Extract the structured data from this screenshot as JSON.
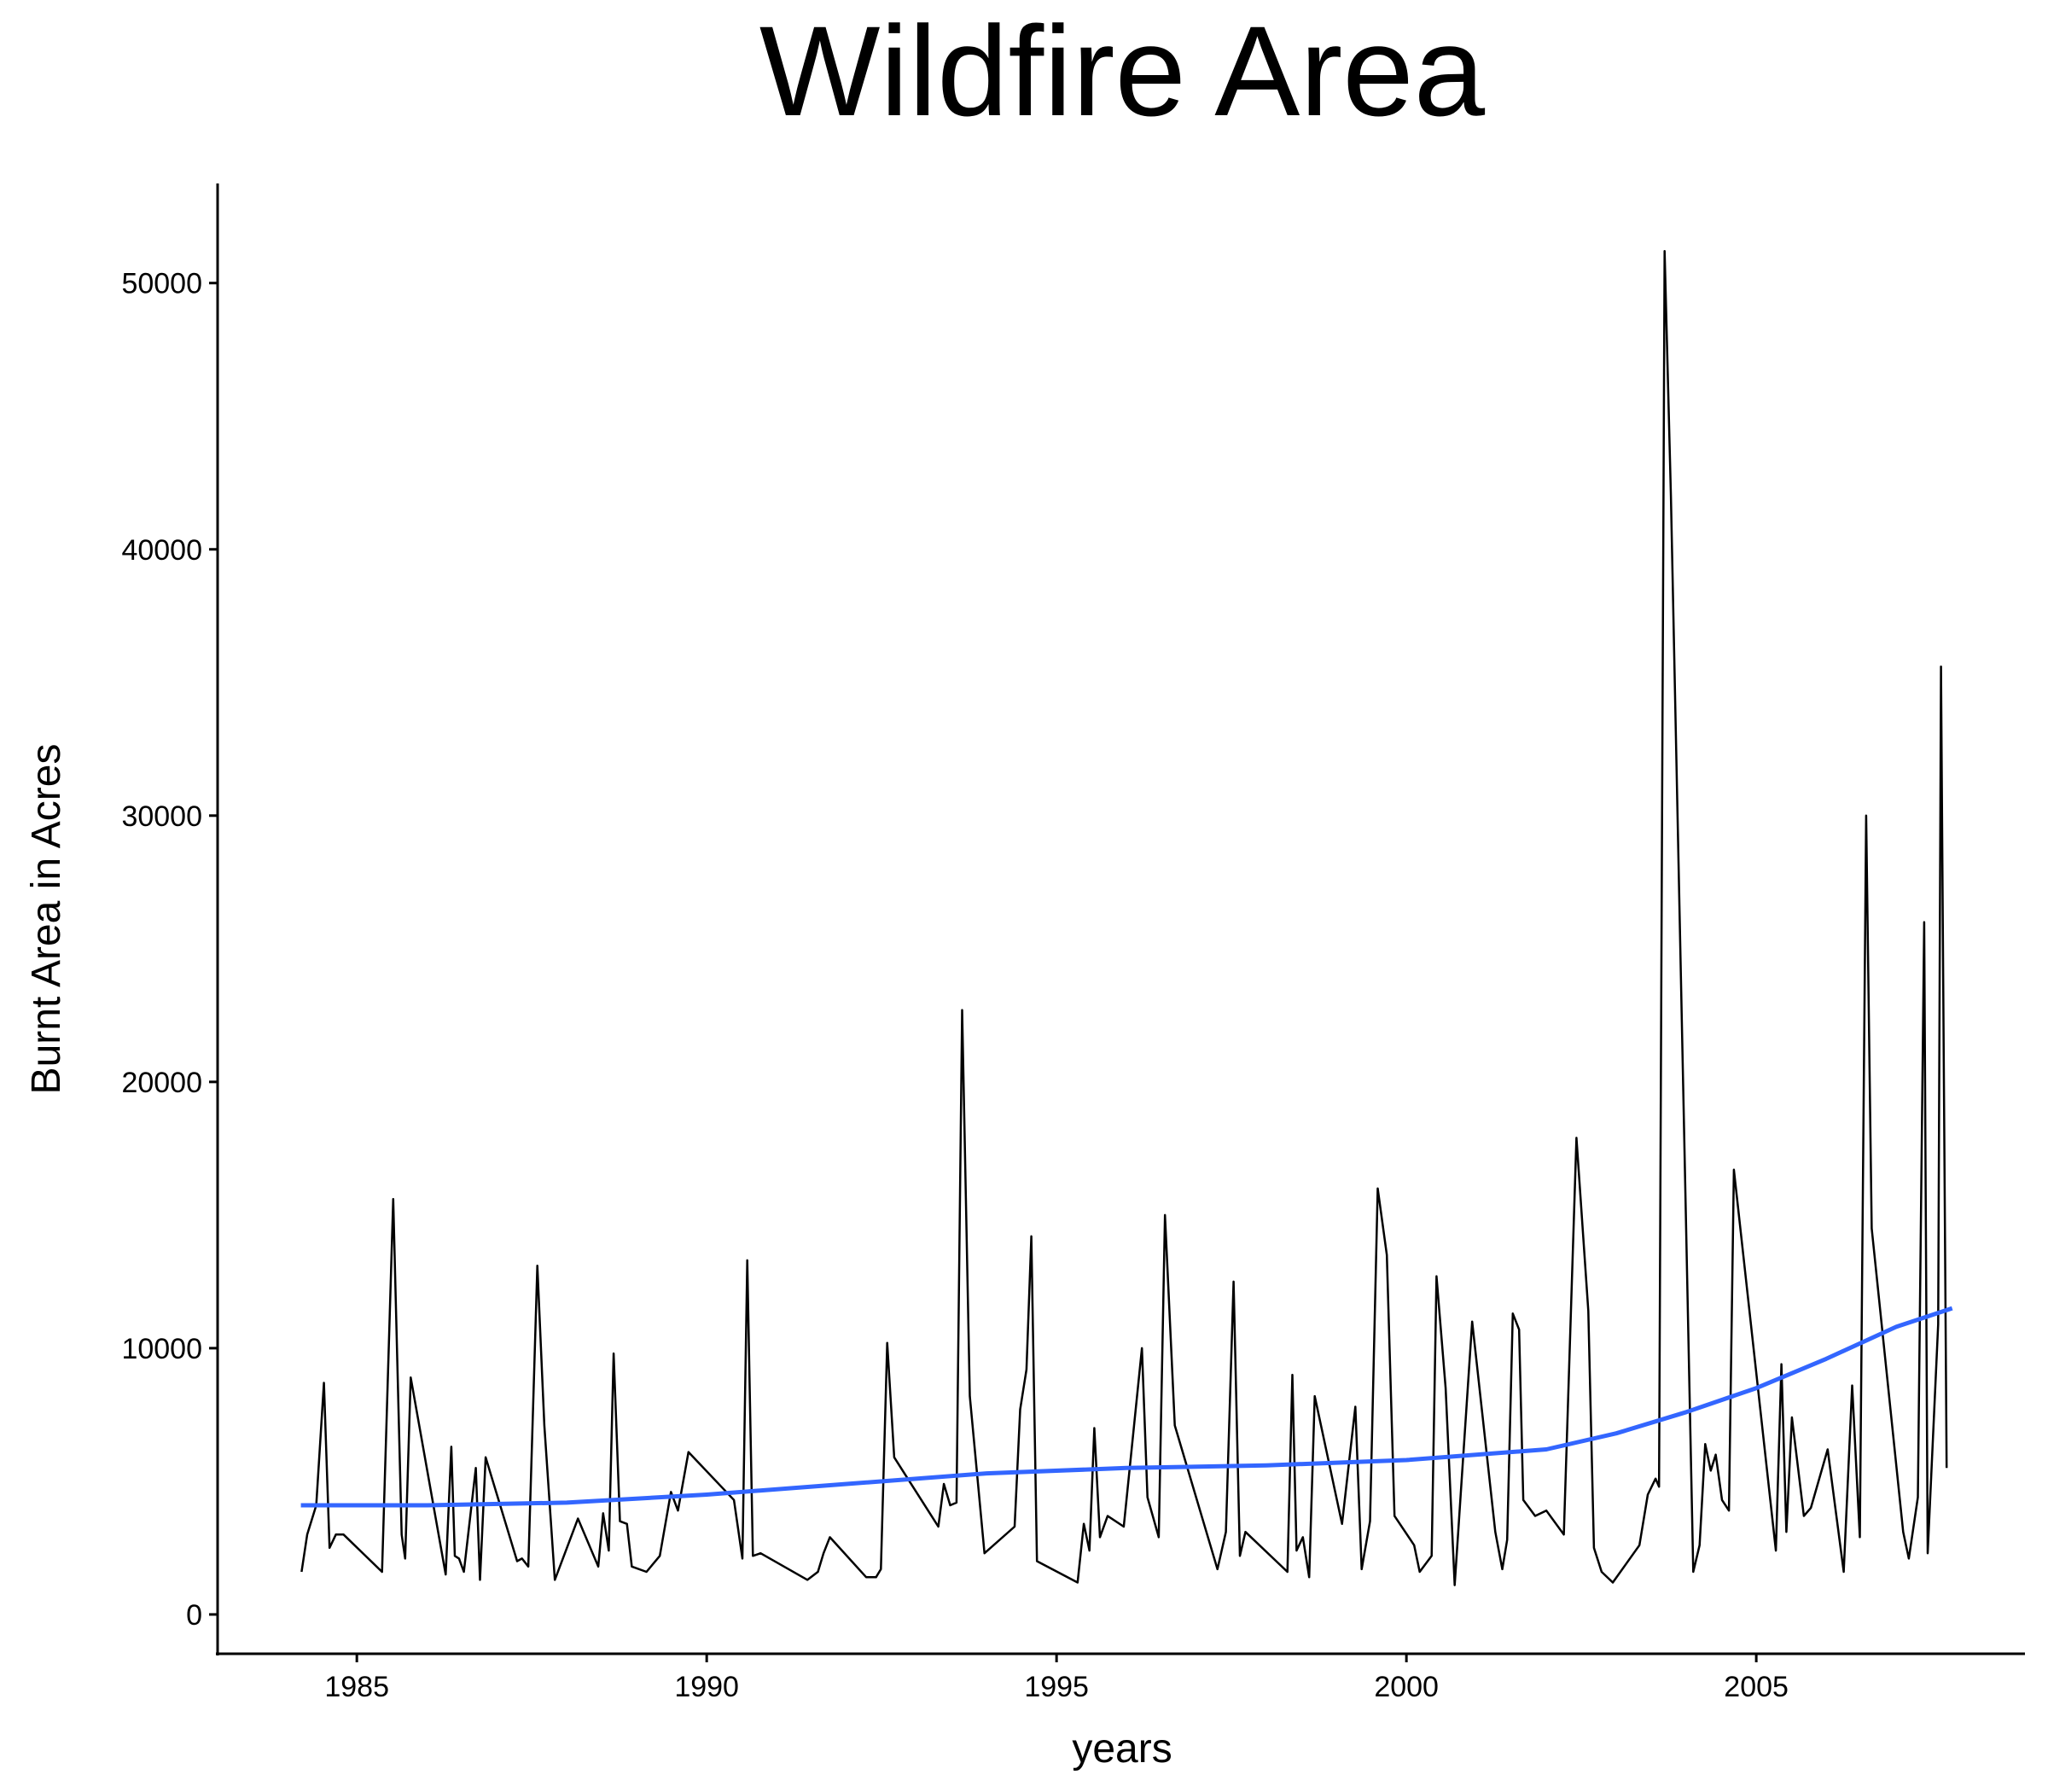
{
  "chart_data": {
    "type": "line",
    "title": "Wildfire Area",
    "x_label": "years",
    "y_label": "Burnt Area in Acres",
    "xlim": [
      1983.01,
      2008.84
    ],
    "ylim": [
      -1476,
      53740
    ],
    "xticks": [
      1985,
      1990,
      1995,
      2000,
      2005
    ],
    "yticks": [
      0,
      10000,
      20000,
      30000,
      40000,
      50000
    ],
    "grid": false,
    "series": [
      {
        "color": "#000000",
        "width": 2.5,
        "x": [
          1984.21,
          1984.29,
          1984.42,
          1984.53,
          1984.61,
          1984.7,
          1984.81,
          1985.36,
          1985.52,
          1985.64,
          1985.69,
          1985.77,
          1986.27,
          1986.35,
          1986.4,
          1986.46,
          1986.53,
          1986.7,
          1986.76,
          1986.84,
          1987.29,
          1987.36,
          1987.45,
          1987.58,
          1987.68,
          1987.83,
          1988.16,
          1988.45,
          1988.52,
          1988.6,
          1988.67,
          1988.76,
          1988.86,
          1988.93,
          1989.14,
          1989.33,
          1989.49,
          1989.59,
          1989.74,
          1990.39,
          1990.51,
          1990.58,
          1990.66,
          1990.77,
          1991.44,
          1991.59,
          1991.67,
          1991.76,
          1992.28,
          1992.42,
          1992.49,
          1992.58,
          1992.68,
          1993.31,
          1993.39,
          1993.48,
          1993.57,
          1993.65,
          1993.76,
          1993.97,
          1994.4,
          1994.48,
          1994.57,
          1994.64,
          1994.72,
          1995.3,
          1995.39,
          1995.47,
          1995.54,
          1995.62,
          1995.73,
          1995.96,
          1996.22,
          1996.3,
          1996.46,
          1996.55,
          1996.69,
          1997.3,
          1997.42,
          1997.53,
          1997.62,
          1997.7,
          1998.3,
          1998.37,
          1998.43,
          1998.52,
          1998.61,
          1998.69,
          1999.08,
          1999.27,
          1999.36,
          1999.48,
          1999.59,
          1999.72,
          1999.83,
          2000.11,
          2000.19,
          2000.36,
          2000.43,
          2000.56,
          2000.69,
          2000.94,
          2001.27,
          2001.37,
          2001.44,
          2001.52,
          2001.61,
          2001.67,
          2001.84,
          2002.0,
          2002.25,
          2002.43,
          2002.6,
          2002.68,
          2002.79,
          2002.95,
          2003.33,
          2003.45,
          2003.56,
          2003.61,
          2003.69,
          2003.78,
          2004.1,
          2004.19,
          2004.27,
          2004.35,
          2004.42,
          2004.51,
          2004.61,
          2004.68,
          2005.28,
          2005.36,
          2005.43,
          2005.51,
          2005.68,
          2005.78,
          2006.02,
          2006.25,
          2006.37,
          2006.48,
          2006.57,
          2006.65,
          2007.1,
          2007.18,
          2007.31,
          2007.4,
          2007.45,
          2007.6,
          2007.64,
          2007.72
        ],
        "values": [
          1600,
          3000,
          4100,
          8700,
          2500,
          3000,
          3000,
          1600,
          15600,
          3000,
          2100,
          8900,
          1500,
          6300,
          2200,
          2100,
          1600,
          5500,
          1300,
          5900,
          2000,
          2100,
          1800,
          13100,
          7100,
          1300,
          3600,
          1800,
          3800,
          2400,
          9800,
          3500,
          3400,
          1800,
          1600,
          2200,
          4600,
          3900,
          6100,
          4300,
          2100,
          13300,
          2200,
          2300,
          1300,
          1600,
          2300,
          2900,
          1400,
          1400,
          1700,
          10200,
          5900,
          3300,
          4900,
          4100,
          4200,
          22700,
          8200,
          2300,
          3300,
          7700,
          9200,
          14200,
          2000,
          1200,
          3400,
          2400,
          7000,
          2900,
          3700,
          3300,
          10000,
          4400,
          2900,
          15000,
          7100,
          1700,
          3100,
          12500,
          2200,
          3100,
          1600,
          9000,
          2400,
          2900,
          1400,
          8200,
          3400,
          7800,
          1700,
          3500,
          16000,
          13500,
          3700,
          2600,
          1600,
          2200,
          12700,
          8500,
          1100,
          11000,
          3100,
          1700,
          2800,
          11300,
          10700,
          4300,
          3700,
          3900,
          3000,
          17900,
          11400,
          2500,
          1600,
          1200,
          2600,
          4500,
          5100,
          4800,
          51200,
          42000,
          1600,
          2600,
          6400,
          5400,
          6000,
          4300,
          3900,
          16700,
          2400,
          9400,
          3100,
          7400,
          3700,
          4000,
          6200,
          1600,
          8600,
          2900,
          30000,
          14500,
          3100,
          2100,
          4400,
          26000,
          2300,
          10900,
          35600,
          5500
        ]
      },
      {
        "color": "#3366ff",
        "width": 5,
        "x": [
          1984.2,
          1986,
          1988,
          1990,
          1992,
          1994,
          1996,
          1998,
          2000,
          2002,
          2003,
          2004,
          2005,
          2006,
          2007,
          2007.8
        ],
        "values": [
          4100,
          4100,
          4200,
          4500,
          4900,
          5300,
          5500,
          5600,
          5800,
          6200,
          6800,
          7600,
          8500,
          9600,
          10800,
          11500
        ]
      }
    ]
  }
}
